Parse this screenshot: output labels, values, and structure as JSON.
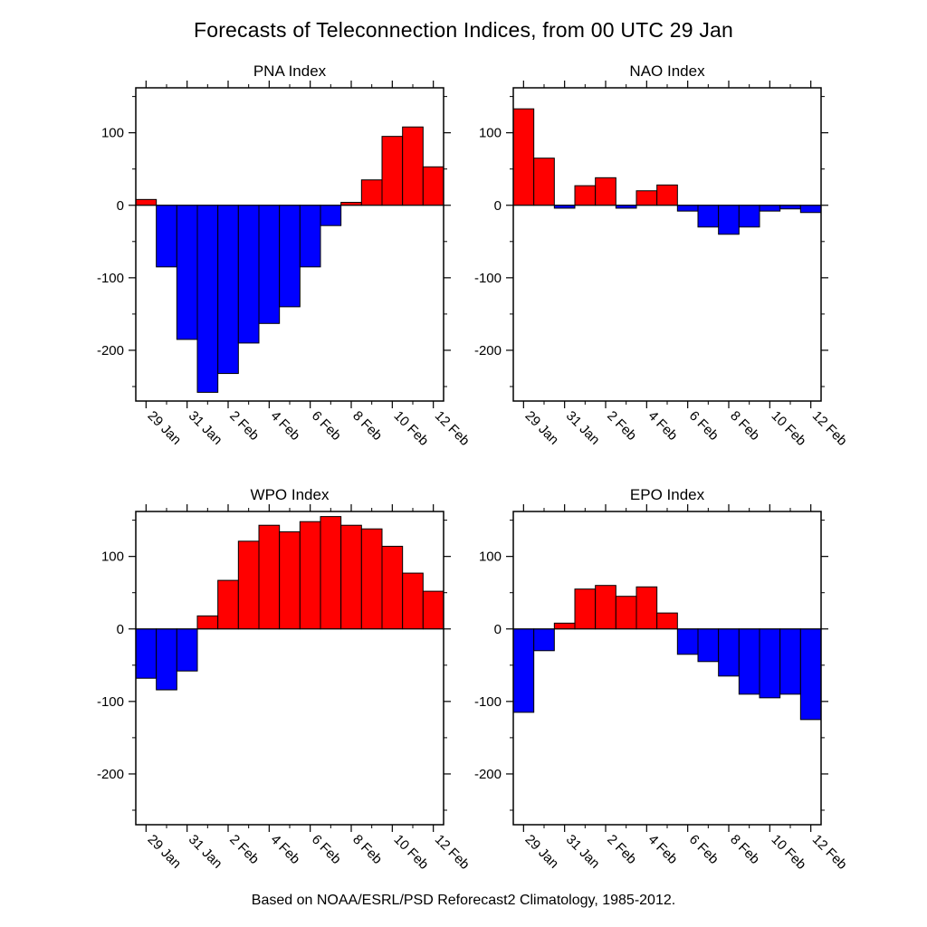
{
  "figure": {
    "title": "Forecasts of Teleconnection Indices, from 00 UTC 29 Jan",
    "caption": "Based on NOAA/ESRL/PSD Reforecast2 Climatology, 1985-2012."
  },
  "colors": {
    "positive": "#ff0000",
    "negative": "#0000ff",
    "axis": "#000000",
    "background": "#ffffff"
  },
  "chart_data": [
    {
      "type": "bar",
      "title": "PNA Index",
      "categories": [
        "29 Jan",
        "30 Jan",
        "31 Jan",
        "1 Feb",
        "2 Feb",
        "3 Feb",
        "4 Feb",
        "5 Feb",
        "6 Feb",
        "7 Feb",
        "8 Feb",
        "9 Feb",
        "10 Feb",
        "11 Feb",
        "12 Feb"
      ],
      "values": [
        8,
        -85,
        -185,
        -258,
        -232,
        -190,
        -163,
        -140,
        -85,
        -28,
        4,
        35,
        95,
        108,
        53
      ],
      "ylim": [
        -270,
        162
      ],
      "yticks": [
        -200,
        -100,
        0,
        100
      ],
      "ytick_minor_step": 50,
      "xtick_labeled": [
        "29 Jan",
        "31 Jan",
        "2 Feb",
        "4 Feb",
        "6 Feb",
        "8 Feb",
        "10 Feb",
        "12 Feb"
      ],
      "legend": "none",
      "grid": "off"
    },
    {
      "type": "bar",
      "title": "NAO Index",
      "categories": [
        "29 Jan",
        "30 Jan",
        "31 Jan",
        "1 Feb",
        "2 Feb",
        "3 Feb",
        "4 Feb",
        "5 Feb",
        "6 Feb",
        "7 Feb",
        "8 Feb",
        "9 Feb",
        "10 Feb",
        "11 Feb",
        "12 Feb"
      ],
      "values": [
        133,
        65,
        -4,
        27,
        38,
        -4,
        20,
        28,
        -8,
        -30,
        -40,
        -30,
        -8,
        -5,
        -10
      ],
      "ylim": [
        -270,
        162
      ],
      "yticks": [
        -200,
        -100,
        0,
        100
      ],
      "ytick_minor_step": 50,
      "xtick_labeled": [
        "29 Jan",
        "31 Jan",
        "2 Feb",
        "4 Feb",
        "6 Feb",
        "8 Feb",
        "10 Feb",
        "12 Feb"
      ],
      "legend": "none",
      "grid": "off"
    },
    {
      "type": "bar",
      "title": "WPO Index",
      "categories": [
        "29 Jan",
        "30 Jan",
        "31 Jan",
        "1 Feb",
        "2 Feb",
        "3 Feb",
        "4 Feb",
        "5 Feb",
        "6 Feb",
        "7 Feb",
        "8 Feb",
        "9 Feb",
        "10 Feb",
        "11 Feb",
        "12 Feb"
      ],
      "values": [
        -68,
        -84,
        -58,
        18,
        67,
        121,
        143,
        134,
        148,
        155,
        143,
        138,
        114,
        77,
        52
      ],
      "ylim": [
        -270,
        162
      ],
      "yticks": [
        -200,
        -100,
        0,
        100
      ],
      "ytick_minor_step": 50,
      "xtick_labeled": [
        "29 Jan",
        "31 Jan",
        "2 Feb",
        "4 Feb",
        "6 Feb",
        "8 Feb",
        "10 Feb",
        "12 Feb"
      ],
      "legend": "none",
      "grid": "off"
    },
    {
      "type": "bar",
      "title": "EPO Index",
      "categories": [
        "29 Jan",
        "30 Jan",
        "31 Jan",
        "1 Feb",
        "2 Feb",
        "3 Feb",
        "4 Feb",
        "5 Feb",
        "6 Feb",
        "7 Feb",
        "8 Feb",
        "9 Feb",
        "10 Feb",
        "11 Feb",
        "12 Feb"
      ],
      "values": [
        -115,
        -30,
        8,
        55,
        60,
        45,
        58,
        22,
        -35,
        -45,
        -65,
        -90,
        -95,
        -90,
        -125
      ],
      "ylim": [
        -270,
        162
      ],
      "yticks": [
        -200,
        -100,
        0,
        100
      ],
      "ytick_minor_step": 50,
      "xtick_labeled": [
        "29 Jan",
        "31 Jan",
        "2 Feb",
        "4 Feb",
        "6 Feb",
        "8 Feb",
        "10 Feb",
        "12 Feb"
      ],
      "legend": "none",
      "grid": "off"
    }
  ]
}
